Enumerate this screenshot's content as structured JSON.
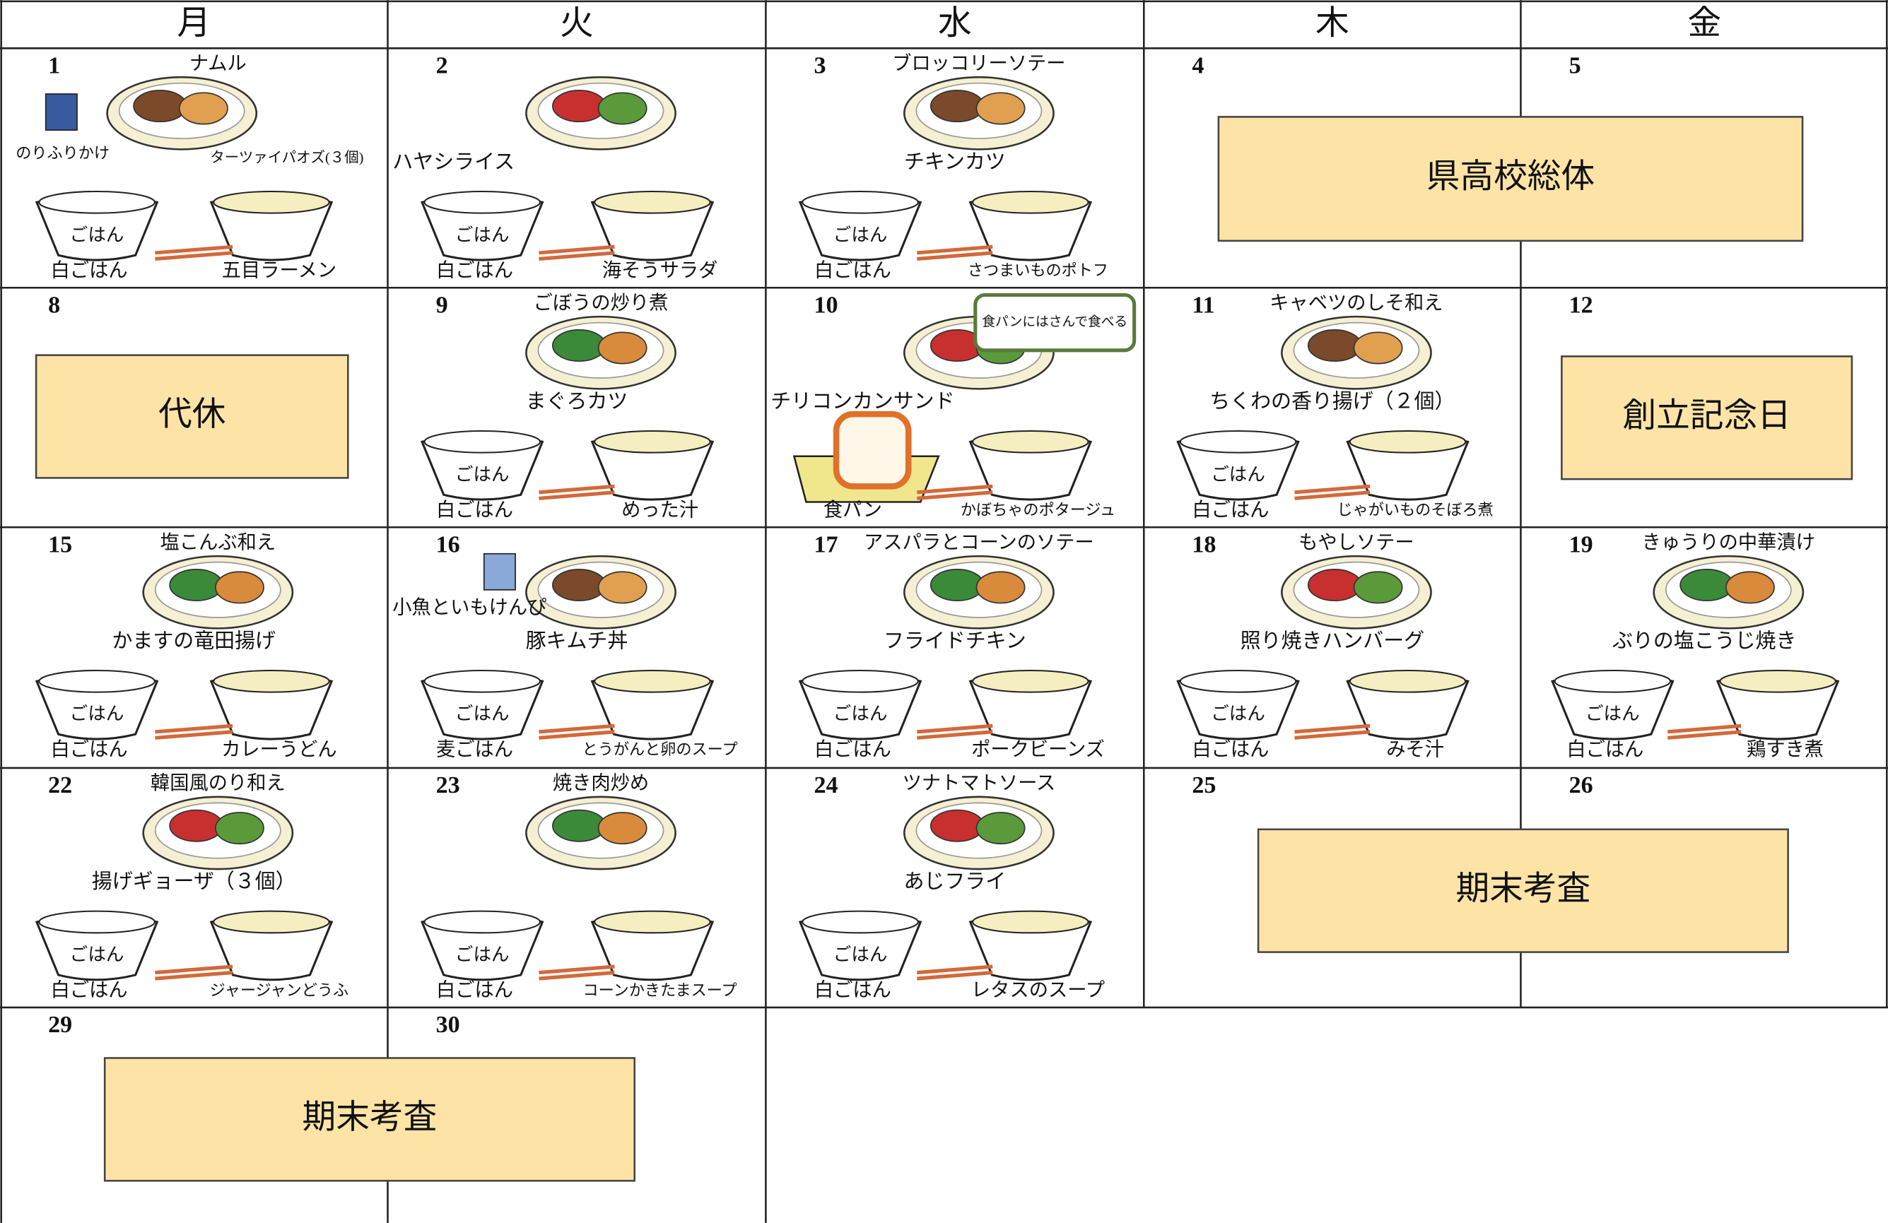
{
  "header": {
    "days": [
      "月",
      "火",
      "水",
      "木",
      "金"
    ]
  },
  "rice_bowl_label": "ごはん",
  "weeks": [
    {
      "cells": [
        {
          "date": "1",
          "side": "ナムル",
          "main": "ターツァイパオズ(３個)",
          "extra": "のりふりかけ",
          "staple": "白ごはん",
          "soup": "五目ラーメン"
        },
        {
          "date": "2",
          "main": "ハヤシライス",
          "staple": "白ごはん",
          "soup": "海そうサラダ"
        },
        {
          "date": "3",
          "side": "ブロッコリーソテー",
          "main": "チキンカツ",
          "staple": "白ごはん",
          "soup": "さつまいものポトフ"
        },
        {
          "date": "4"
        },
        {
          "date": "5"
        }
      ],
      "events": [
        "県高校総体"
      ]
    },
    {
      "cells": [
        {
          "date": "8"
        },
        {
          "date": "9",
          "side": "ごぼうの炒り煮",
          "main": "まぐろカツ",
          "staple": "白ごはん",
          "soup": "めった汁"
        },
        {
          "date": "10",
          "main": "チリコンカンサンド",
          "note": "食パンにはさんで食べる",
          "staple": "食パン",
          "soup": "かぼちゃのポタージュ"
        },
        {
          "date": "11",
          "side": "キャベツのしそ和え",
          "main": "ちくわの香り揚げ（２個）",
          "staple": "白ごはん",
          "soup": "じゃがいものそぼろ煮"
        },
        {
          "date": "12"
        }
      ],
      "events": [
        "代休",
        "創立記念日"
      ]
    },
    {
      "cells": [
        {
          "date": "15",
          "side": "塩こんぶ和え",
          "main": "かますの竜田揚げ",
          "staple": "白ごはん",
          "soup": "カレーうどん"
        },
        {
          "date": "16",
          "extra": "小魚といもけんぴ",
          "main": "豚キムチ丼",
          "staple": "麦ごはん",
          "soup": "とうがんと卵のスープ"
        },
        {
          "date": "17",
          "side": "アスパラとコーンのソテー",
          "main": "フライドチキン",
          "staple": "白ごはん",
          "soup": "ポークビーンズ"
        },
        {
          "date": "18",
          "side": "もやしソテー",
          "main": "照り焼きハンバーグ",
          "staple": "白ごはん",
          "soup": "みそ汁"
        },
        {
          "date": "19",
          "side": "きゅうりの中華漬け",
          "main": "ぶりの塩こうじ焼き",
          "staple": "白ごはん",
          "soup": "鶏すき煮"
        }
      ],
      "events": []
    },
    {
      "cells": [
        {
          "date": "22",
          "side": "韓国風のり和え",
          "main": "揚げギョーザ（３個）",
          "staple": "白ごはん",
          "soup": "ジャージャンどうふ"
        },
        {
          "date": "23",
          "side": "焼き肉炒め",
          "staple": "白ごはん",
          "soup": "コーンかきたまスープ"
        },
        {
          "date": "24",
          "side": "ツナトマトソース",
          "main": "あじフライ",
          "staple": "白ごはん",
          "soup": "レタスのスープ"
        },
        {
          "date": "25"
        },
        {
          "date": "26"
        }
      ],
      "events": [
        "期末考査"
      ]
    },
    {
      "cells": [
        {
          "date": "29"
        },
        {
          "date": "30"
        }
      ],
      "events": [
        "期末考査"
      ]
    }
  ]
}
